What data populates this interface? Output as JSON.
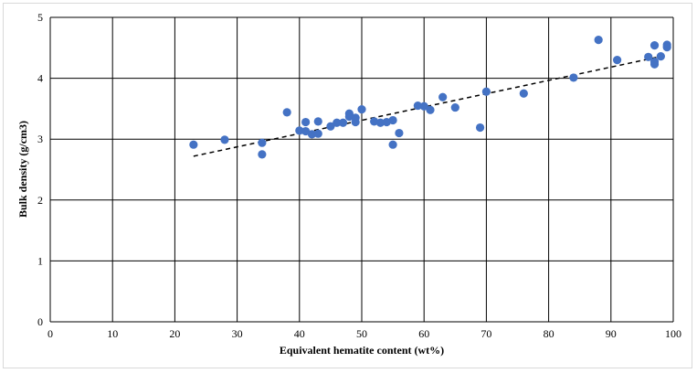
{
  "chart_data": {
    "type": "scatter",
    "title": "",
    "xlabel": "Equivalent hematite content (wt%)",
    "ylabel": "Bulk density (g/cm3)",
    "xlim": [
      0,
      100
    ],
    "ylim": [
      0,
      5
    ],
    "x_ticks": [
      0,
      10,
      20,
      30,
      40,
      50,
      60,
      70,
      80,
      90,
      100
    ],
    "y_ticks": [
      0,
      1,
      2,
      3,
      4,
      5
    ],
    "grid": "on",
    "legend": "none",
    "marker_color": "#4472c4",
    "trendline": {
      "style": "dashed",
      "color": "#000000",
      "x": [
        23,
        99
      ],
      "y": [
        2.72,
        4.38
      ]
    },
    "x": [
      23,
      28,
      34,
      34,
      38,
      40,
      41,
      41,
      42,
      43,
      43,
      45,
      46,
      47,
      48,
      48,
      49,
      49,
      50,
      52,
      53,
      54,
      55,
      55,
      56,
      59,
      60,
      61,
      63,
      65,
      69,
      70,
      76,
      84,
      88,
      91,
      96,
      97,
      97,
      97,
      98,
      99,
      99
    ],
    "y": [
      2.91,
      2.99,
      2.94,
      2.75,
      3.44,
      3.14,
      3.28,
      3.13,
      3.08,
      3.29,
      3.09,
      3.21,
      3.27,
      3.27,
      3.42,
      3.37,
      3.28,
      3.35,
      3.49,
      3.29,
      3.27,
      3.28,
      3.31,
      2.91,
      3.1,
      3.55,
      3.54,
      3.48,
      3.69,
      3.52,
      3.19,
      3.78,
      3.75,
      4.01,
      4.63,
      4.3,
      4.35,
      4.54,
      4.27,
      4.23,
      4.36,
      4.55,
      4.51
    ]
  }
}
